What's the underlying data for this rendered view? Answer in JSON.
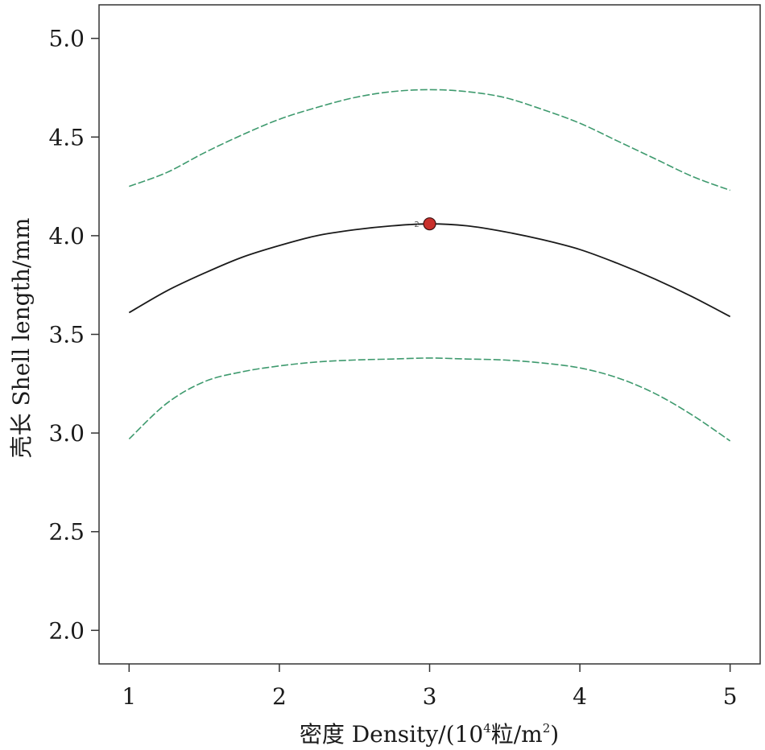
{
  "chart_data": {
    "type": "line",
    "title": "",
    "xlabel": {
      "prefix": "密度 Density/(10",
      "exp1": "4",
      "middle": "粒/m",
      "exp2": "2",
      "suffix": ")"
    },
    "ylabel": "壳长 Shell length/mm",
    "xlim": [
      0.8,
      5.2
    ],
    "ylim": [
      1.83,
      5.17
    ],
    "xticks": [
      1,
      2,
      3,
      4,
      5
    ],
    "xtick_labels": [
      "1",
      "2",
      "3",
      "4",
      "5"
    ],
    "yticks": [
      2.0,
      2.5,
      3.0,
      3.5,
      4.0,
      4.5,
      5.0
    ],
    "ytick_labels": [
      "2.0",
      "2.5",
      "3.0",
      "3.5",
      "4.0",
      "4.5",
      "5.0"
    ],
    "grid": false,
    "series": [
      {
        "role": "fit",
        "style": "solid",
        "color": "#1a1a1a",
        "x": [
          1,
          1.25,
          1.5,
          1.75,
          2,
          2.25,
          2.5,
          2.75,
          3,
          3.25,
          3.5,
          3.75,
          4,
          4.25,
          4.5,
          4.75,
          5
        ],
        "y": [
          3.61,
          3.72,
          3.81,
          3.89,
          3.95,
          4.0,
          4.03,
          4.05,
          4.06,
          4.05,
          4.02,
          3.98,
          3.93,
          3.86,
          3.78,
          3.69,
          3.59
        ]
      },
      {
        "role": "upper-confidence-bound",
        "style": "dashed",
        "color": "#3e9a6e",
        "x": [
          1,
          1.25,
          1.5,
          1.75,
          2,
          2.25,
          2.5,
          2.75,
          3,
          3.25,
          3.5,
          3.75,
          4,
          4.25,
          4.5,
          4.75,
          5
        ],
        "y": [
          4.25,
          4.32,
          4.42,
          4.51,
          4.59,
          4.65,
          4.7,
          4.73,
          4.74,
          4.73,
          4.7,
          4.64,
          4.57,
          4.48,
          4.39,
          4.3,
          4.23
        ]
      },
      {
        "role": "lower-confidence-bound",
        "style": "dashed",
        "color": "#3e9a6e",
        "x": [
          1,
          1.25,
          1.5,
          1.75,
          2,
          2.25,
          2.5,
          2.75,
          3,
          3.25,
          3.5,
          3.75,
          4,
          4.25,
          4.5,
          4.75,
          5
        ],
        "y": [
          2.97,
          3.15,
          3.26,
          3.31,
          3.34,
          3.36,
          3.37,
          3.375,
          3.38,
          3.375,
          3.37,
          3.355,
          3.33,
          3.28,
          3.2,
          3.09,
          2.96
        ]
      }
    ],
    "points": [
      {
        "x": 3,
        "y": 4.06,
        "label": "2",
        "color": "#c9302c"
      }
    ]
  }
}
